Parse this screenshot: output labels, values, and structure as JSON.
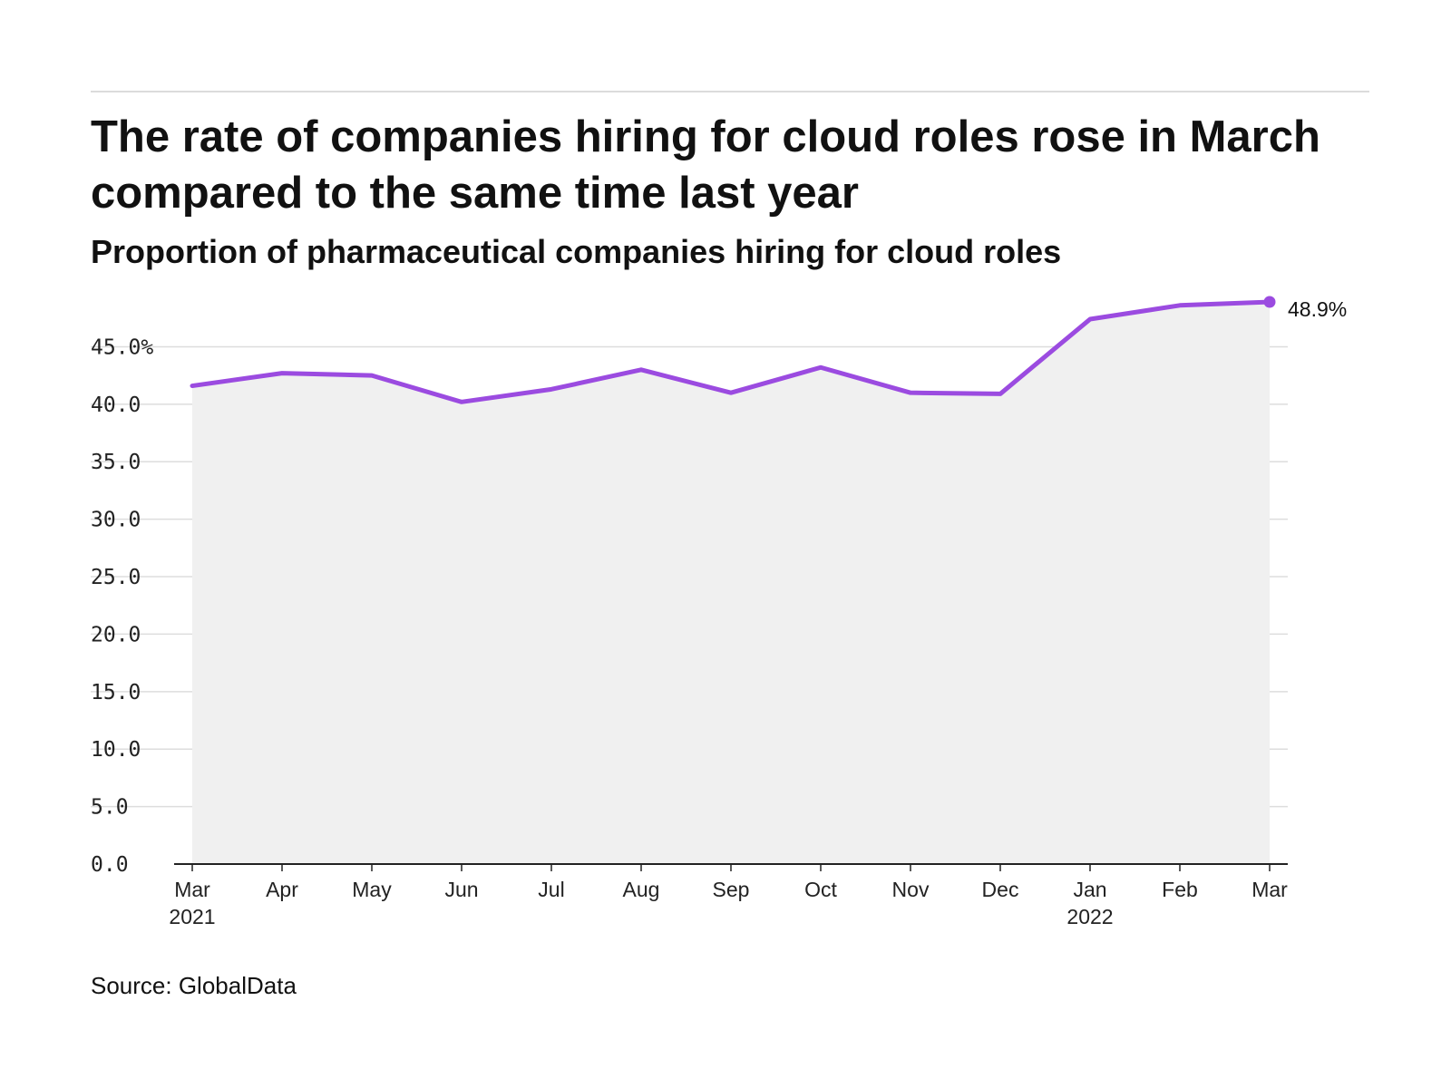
{
  "title": "The rate of companies hiring for cloud roles rose in March compared to the same time last year",
  "subtitle": "Proportion of pharmaceutical companies hiring for cloud roles",
  "source": "Source: GlobalData",
  "colors": {
    "line": "#9b4be0",
    "area": "#f0f0f0",
    "grid": "#dddddd",
    "axis": "#222222"
  },
  "chart_data": {
    "type": "area",
    "x_labels": [
      {
        "label": "Mar",
        "year": "2021"
      },
      {
        "label": "Apr",
        "year": ""
      },
      {
        "label": "May",
        "year": ""
      },
      {
        "label": "Jun",
        "year": ""
      },
      {
        "label": "Jul",
        "year": ""
      },
      {
        "label": "Aug",
        "year": ""
      },
      {
        "label": "Sep",
        "year": ""
      },
      {
        "label": "Oct",
        "year": ""
      },
      {
        "label": "Nov",
        "year": ""
      },
      {
        "label": "Dec",
        "year": ""
      },
      {
        "label": "Jan",
        "year": "2022"
      },
      {
        "label": "Feb",
        "year": ""
      },
      {
        "label": "Mar",
        "year": ""
      }
    ],
    "x": [
      "2021-03",
      "2021-04",
      "2021-05",
      "2021-06",
      "2021-07",
      "2021-08",
      "2021-09",
      "2021-10",
      "2021-11",
      "2021-12",
      "2022-01",
      "2022-02",
      "2022-03"
    ],
    "values": [
      41.6,
      42.7,
      42.5,
      40.2,
      41.3,
      43.0,
      41.0,
      43.2,
      41.0,
      40.9,
      47.4,
      48.6,
      48.9
    ],
    "y_ticks": [
      {
        "value": 0,
        "label": "0.0"
      },
      {
        "value": 5,
        "label": "5.0"
      },
      {
        "value": 10,
        "label": "10.0"
      },
      {
        "value": 15,
        "label": "15.0"
      },
      {
        "value": 20,
        "label": "20.0"
      },
      {
        "value": 25,
        "label": "25.0"
      },
      {
        "value": 30,
        "label": "30.0"
      },
      {
        "value": 35,
        "label": "35.0"
      },
      {
        "value": 40,
        "label": "40.0"
      },
      {
        "value": 45,
        "label": "45.0%"
      }
    ],
    "ylim": [
      0,
      48.9
    ],
    "end_label": "48.9%",
    "grid": true,
    "xlabel": "",
    "ylabel": ""
  }
}
